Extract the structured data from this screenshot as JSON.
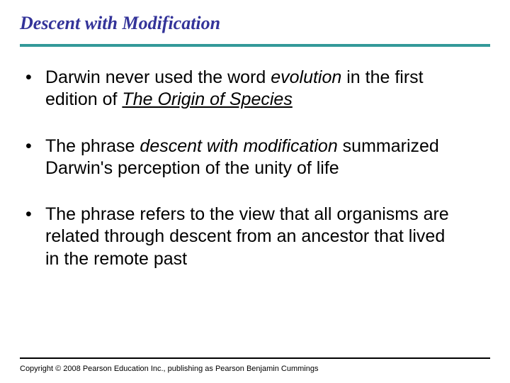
{
  "title": "Descent with Modification",
  "divider_color": "#339999",
  "title_color": "#333399",
  "bullets": [
    {
      "pre": "Darwin never used the word ",
      "italic1": "evolution",
      "mid": " in the first edition of ",
      "italic2_underline": "The Origin of Species",
      "post": ""
    },
    {
      "pre": "The phrase ",
      "italic1": "descent with modification",
      "mid": " summarized Darwin's perception of the unity of life",
      "italic2_underline": "",
      "post": ""
    },
    {
      "pre": "The phrase refers to the view that all organisms are related through descent from an ancestor that lived in the remote past",
      "italic1": "",
      "mid": "",
      "italic2_underline": "",
      "post": ""
    }
  ],
  "copyright": "Copyright © 2008 Pearson Education Inc., publishing as Pearson Benjamin Cummings"
}
